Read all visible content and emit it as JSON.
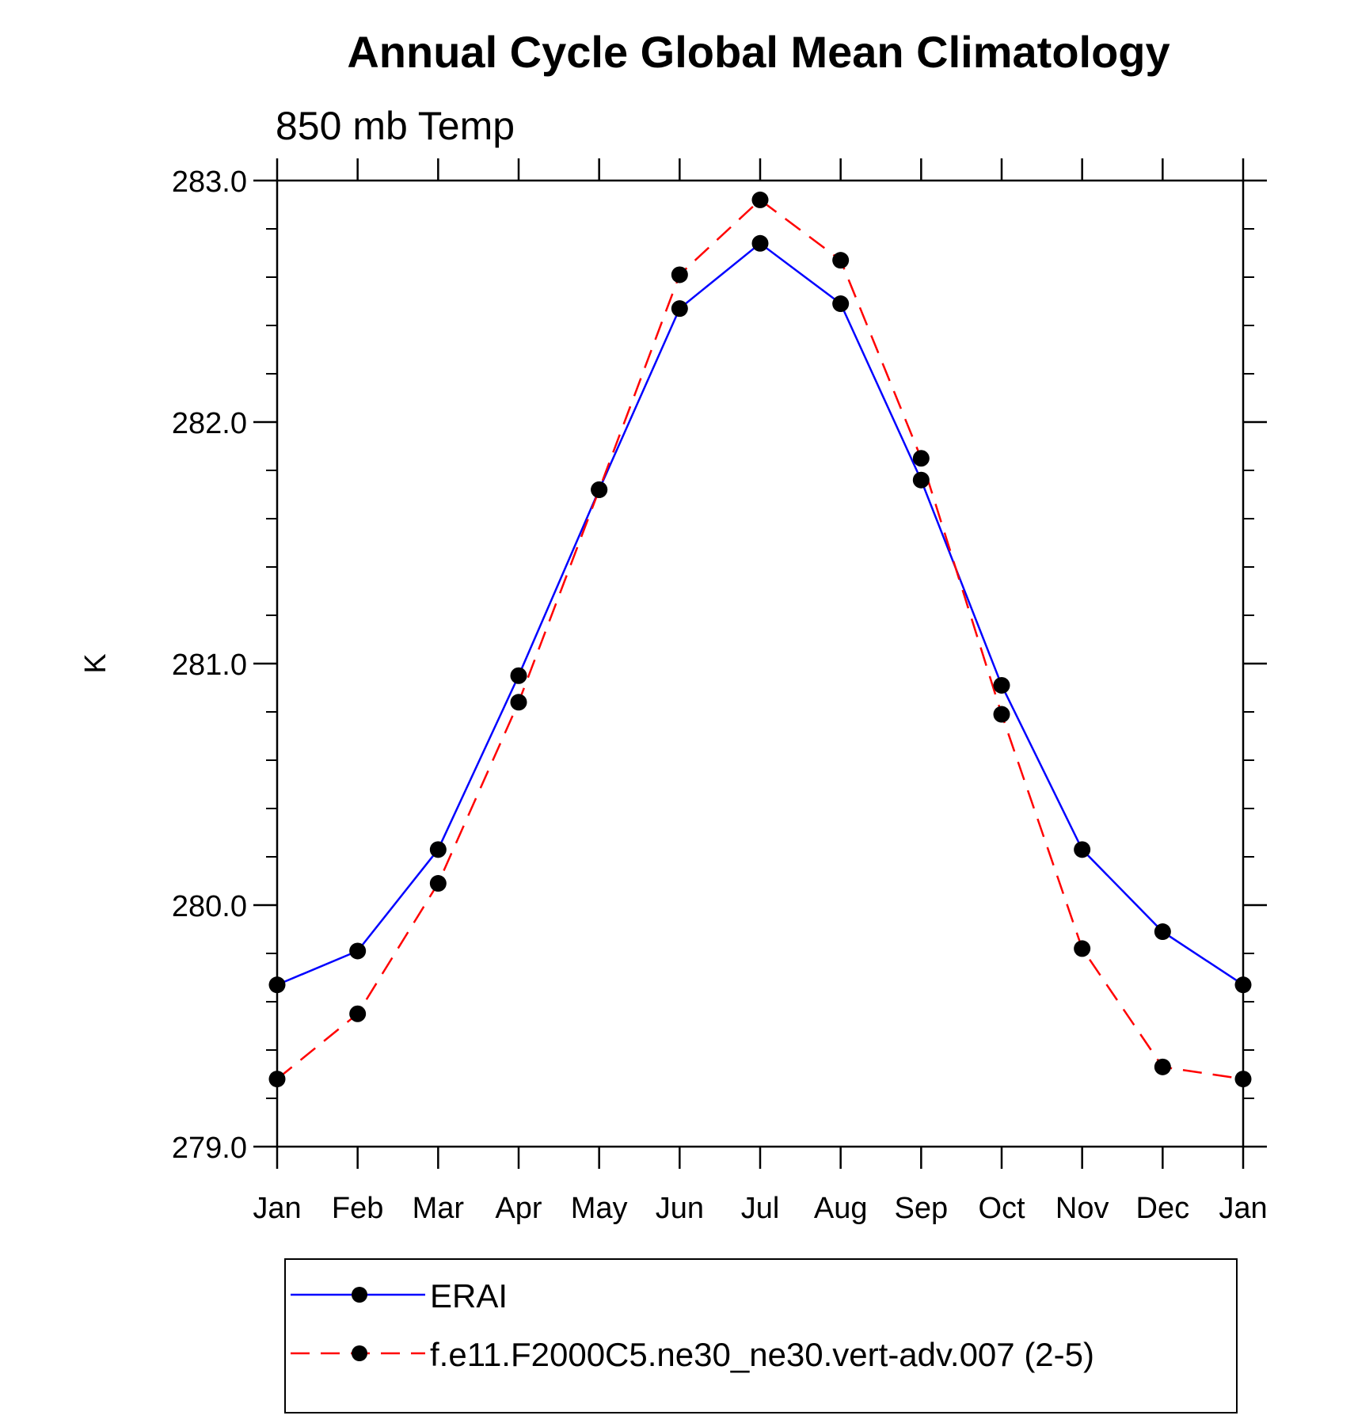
{
  "chart_data": {
    "type": "line",
    "title": "Annual Cycle Global Mean Climatology",
    "subtitle": "850 mb Temp",
    "ylabel": "K",
    "xlabel": "",
    "categories": [
      "Jan",
      "Feb",
      "Mar",
      "Apr",
      "May",
      "Jun",
      "Jul",
      "Aug",
      "Sep",
      "Oct",
      "Nov",
      "Dec",
      "Jan"
    ],
    "ylim": [
      279.0,
      283.0
    ],
    "yticks": [
      "279.0",
      "280.0",
      "281.0",
      "282.0",
      "283.0"
    ],
    "ytick_values": [
      279.0,
      280.0,
      281.0,
      282.0,
      283.0
    ],
    "y_minor_step": 0.2,
    "legend_position": "bottom",
    "series": [
      {
        "name": "ERAI",
        "color": "#0000ff",
        "dash": "solid",
        "marker": "circle",
        "values": [
          279.67,
          279.81,
          280.23,
          280.95,
          281.72,
          282.47,
          282.74,
          282.49,
          281.76,
          280.91,
          280.23,
          279.89,
          279.67
        ]
      },
      {
        "name": "f.e11.F2000C5.ne30_ne30.vert-adv.007 (2-5)",
        "color": "#ff0000",
        "dash": "dashed",
        "marker": "circle",
        "values": [
          279.28,
          279.55,
          280.09,
          280.84,
          281.72,
          282.61,
          282.92,
          282.67,
          281.85,
          280.79,
          279.82,
          279.33,
          279.28
        ]
      }
    ]
  }
}
